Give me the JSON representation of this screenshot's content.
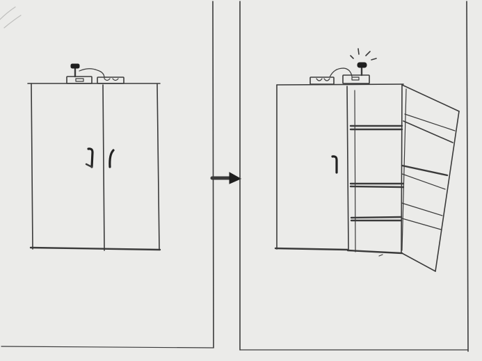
{
  "panels": [
    {
      "id": "before",
      "state": "closed",
      "doors": 2,
      "shelves": 0,
      "alarm_indicator": "off"
    },
    {
      "id": "after",
      "state": "open",
      "doors": 2,
      "open_doors": 1,
      "shelves": 3,
      "alarm_indicator": "on"
    }
  ],
  "transition": {
    "icon": "arrow-right-icon"
  },
  "colors": {
    "paper": "#efefed",
    "ink": "#3a3a3a",
    "dark_ink": "#1f1f1f"
  }
}
